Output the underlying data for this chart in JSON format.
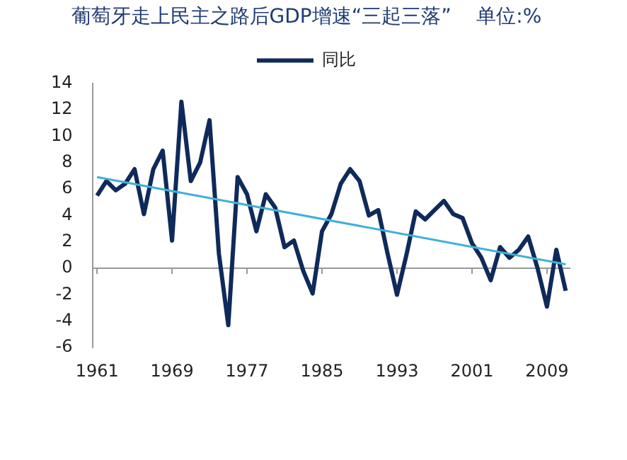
{
  "chart_data": {
    "type": "line",
    "title": "葡萄牙走上民主之路后GDP增速“三起三落”    单位:%",
    "x": [
      1961,
      1962,
      1963,
      1964,
      1965,
      1966,
      1967,
      1968,
      1969,
      1970,
      1971,
      1972,
      1973,
      1974,
      1975,
      1976,
      1977,
      1978,
      1979,
      1980,
      1981,
      1982,
      1983,
      1984,
      1985,
      1986,
      1987,
      1988,
      1989,
      1990,
      1991,
      1992,
      1993,
      1994,
      1995,
      1996,
      1997,
      1998,
      1999,
      2000,
      2001,
      2002,
      2003,
      2004,
      2005,
      2006,
      2007,
      2008,
      2009,
      2010,
      2011
    ],
    "series": [
      {
        "name": "同比",
        "color": "#0f2a5a",
        "values": [
          5.5,
          6.6,
          5.9,
          6.4,
          7.5,
          4.1,
          7.5,
          8.9,
          2.1,
          12.6,
          6.6,
          8.0,
          11.2,
          1.1,
          -4.3,
          6.9,
          5.6,
          2.8,
          5.6,
          4.6,
          1.6,
          2.1,
          -0.2,
          -1.9,
          2.8,
          4.1,
          6.4,
          7.5,
          6.6,
          4.0,
          4.4,
          1.1,
          -2.0,
          1.0,
          4.3,
          3.7,
          4.4,
          5.1,
          4.1,
          3.8,
          1.9,
          0.8,
          -0.9,
          1.6,
          0.8,
          1.4,
          2.4,
          0.0,
          -2.9,
          1.4,
          -1.7
        ]
      },
      {
        "type": "line",
        "color": "#3fb0d8",
        "x": [
          1961,
          2011
        ],
        "values": [
          6.9,
          0.3
        ]
      }
    ],
    "xlim": [
      1960.5,
      2011.5
    ],
    "xticks": [
      1961,
      1969,
      1977,
      1985,
      1993,
      2001,
      2009
    ],
    "ylim": [
      -6,
      14
    ],
    "yticks": [
      -6,
      -4,
      -2,
      0,
      2,
      4,
      6,
      8,
      10,
      12,
      14
    ],
    "ref_lines": [
      {
        "axis": "y",
        "value": 0,
        "color": "#999999"
      }
    ],
    "grid": false,
    "legend": "top",
    "marker": "none",
    "line_style": "solid"
  }
}
